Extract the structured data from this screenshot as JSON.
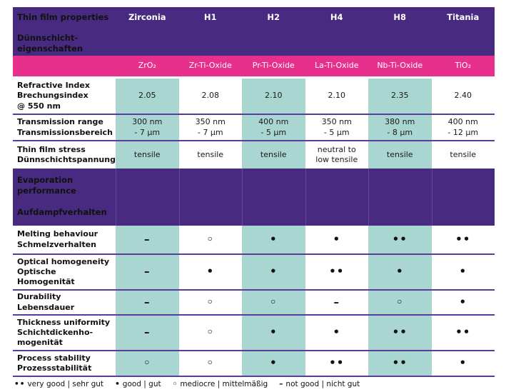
{
  "table": {
    "header": {
      "label_en": "Thin film properties",
      "label_de": "Dünnschicht-\neigenschaften",
      "columns": [
        "Zirconia",
        "H1",
        "H2",
        "H4",
        "H8",
        "Titania"
      ]
    },
    "materials": [
      "ZrO₂",
      "Zr-Ti-Oxide",
      "Pr-Ti-Oxide",
      "La-Ti-Oxide",
      "Nb-Ti-Oxide",
      "TiO₂"
    ],
    "rows": [
      {
        "label": "Refractive Index\nBrechungsindex\n@ 550 nm",
        "values": [
          "2.05",
          "2.08",
          "2.10",
          "2.10",
          "2.35",
          "2.40"
        ]
      },
      {
        "label": "Transmission range\nTransmissionsbereich",
        "values": [
          "300 nm\n- 7 µm",
          "350 nm\n- 7 µm",
          "400 nm\n- 5 µm",
          "350 nm\n- 5 µm",
          "380 nm\n- 8 µm",
          "400 nm\n- 12 µm"
        ]
      },
      {
        "label": "Thin film stress\nDünnschichtspannung",
        "values": [
          "tensile",
          "tensile",
          "tensile",
          "neutral to\nlow tensile",
          "tensile",
          "tensile"
        ]
      },
      {
        "label": "Melting behaviour\nSchmelzverhalten",
        "values": [
          "–",
          "◦",
          "•",
          "•",
          "••",
          "••"
        ]
      },
      {
        "label": "Optical homogeneity\nOptische\nHomogenität",
        "values": [
          "–",
          "•",
          "•",
          "••",
          "•",
          "•"
        ]
      },
      {
        "label": "Durability\nLebensdauer",
        "values": [
          "–",
          "◦",
          "◦",
          "–",
          "◦",
          "•"
        ]
      },
      {
        "label": "Thickness uniformity\nSchichtdickenho-\nmogenität",
        "values": [
          "–",
          "◦",
          "•",
          "•",
          "••",
          "••"
        ]
      },
      {
        "label": "Process stability\nProzessstabilität",
        "values": [
          "◦",
          "◦",
          "•",
          "••",
          "••",
          "•"
        ]
      }
    ],
    "section": {
      "label": "Evaporation\nperformance\n\nAufdampfverhalten"
    }
  },
  "legend": {
    "items": [
      {
        "symbol": "••",
        "text": "very good | sehr gut"
      },
      {
        "symbol": "•",
        "text": "good | gut"
      },
      {
        "symbol": "◦",
        "text": "mediocre | mittelmäßig"
      },
      {
        "symbol": "–",
        "text": "not good | nicht gut"
      }
    ]
  },
  "colors": {
    "header_purple": "#482a80",
    "magenta": "#e7308c",
    "teal": "#a9d6d0",
    "divider": "#5a3a9b"
  }
}
